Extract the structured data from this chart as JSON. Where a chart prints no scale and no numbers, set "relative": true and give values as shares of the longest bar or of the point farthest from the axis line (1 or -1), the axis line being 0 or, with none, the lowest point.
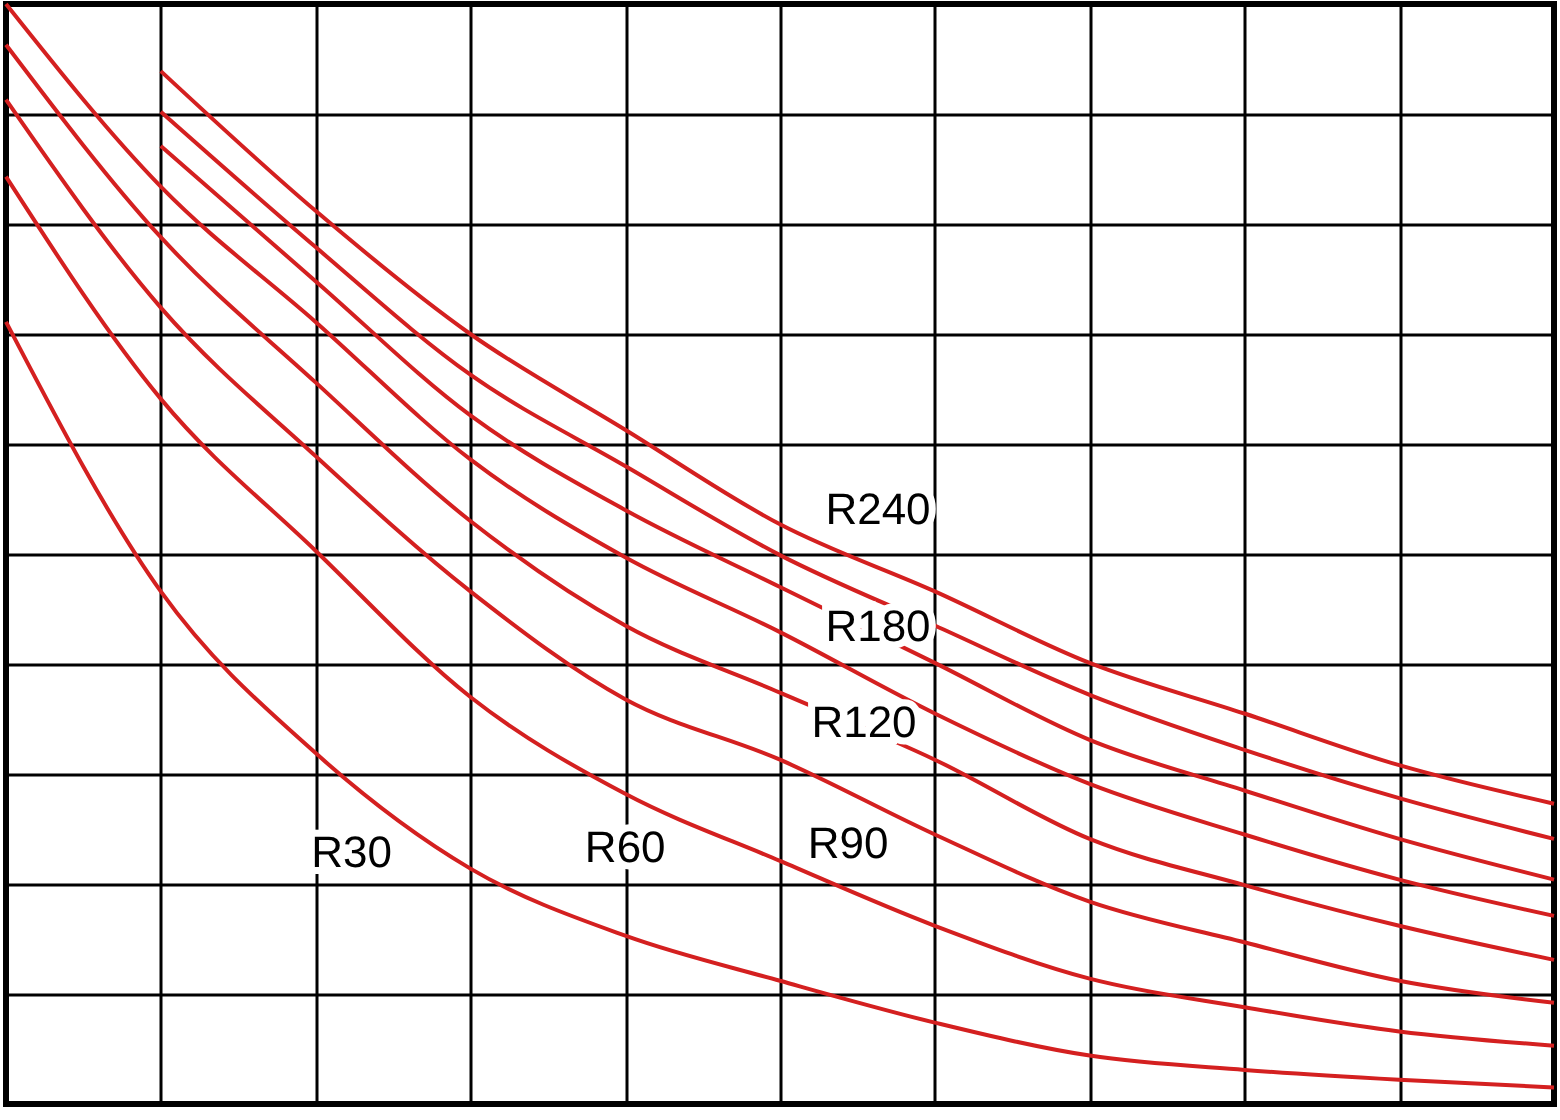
{
  "chart_data": {
    "type": "line",
    "relative": true,
    "categories": [
      null,
      null,
      null,
      null,
      null,
      null,
      null,
      null,
      null,
      null,
      null
    ],
    "grid": true,
    "marker": "none",
    "line_style": "solid",
    "series": [
      {
        "name": "R30",
        "color": "#d42020",
        "values": [
          0.711,
          0.466,
          0.319,
          0.214,
          0.153,
          0.112,
          0.074,
          0.044,
          0.031,
          0.022,
          0.015
        ]
      },
      {
        "name": "R60",
        "color": "#d42020",
        "values": [
          0.843,
          0.641,
          0.503,
          0.37,
          0.282,
          0.221,
          0.162,
          0.114,
          0.088,
          0.066,
          0.053
        ]
      },
      {
        "name": "R90",
        "color": "#d42020",
        "values": [
          0.913,
          0.724,
          0.589,
          0.466,
          0.368,
          0.313,
          0.245,
          0.184,
          0.147,
          0.112,
          0.092
        ]
      },
      {
        "name": "R120",
        "color": "#d42020",
        "values": [
          0.963,
          0.788,
          0.656,
          0.53,
          0.435,
          0.374,
          0.313,
          0.241,
          0.199,
          0.162,
          0.131
        ]
      },
      {
        "color": "#d42020",
        "values": [
          1,
          0.834,
          0.711,
          0.586,
          0.497,
          0.429,
          0.355,
          0.291,
          0.245,
          0.204,
          0.171
        ]
      },
      {
        "name": "R180",
        "color": "#d42020",
        "values": [
          null,
          0.871,
          0.748,
          0.626,
          0.54,
          0.47,
          0.401,
          0.331,
          0.285,
          0.241,
          0.204
        ]
      },
      {
        "color": "#d42020",
        "values": [
          null,
          0.902,
          0.779,
          0.663,
          0.58,
          0.499,
          0.435,
          0.372,
          0.322,
          0.278,
          0.241
        ]
      },
      {
        "name": "R240",
        "color": "#d42020",
        "values": [
          null,
          0.939,
          0.812,
          0.7,
          0.613,
          0.527,
          0.466,
          0.401,
          0.355,
          0.308,
          0.273
        ]
      }
    ]
  }
}
